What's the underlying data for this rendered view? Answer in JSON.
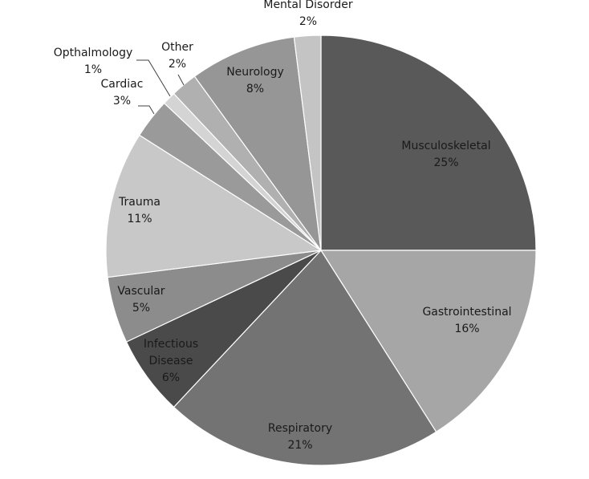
{
  "chart_data": {
    "type": "pie",
    "title": "",
    "start_angle_deg": 0,
    "direction": "clockwise",
    "slices": [
      {
        "label": "Musculoskeletal",
        "value": 25,
        "pct_label": "25%",
        "color": "#595959"
      },
      {
        "label": "Gastrointestinal",
        "value": 16,
        "pct_label": "16%",
        "color": "#a6a6a6"
      },
      {
        "label": "Respiratory",
        "value": 21,
        "pct_label": "21%",
        "color": "#737373"
      },
      {
        "label": "Infectious Disease",
        "value": 6,
        "pct_label": "6%",
        "color": "#4a4a4a"
      },
      {
        "label": "Vascular",
        "value": 5,
        "pct_label": "5%",
        "color": "#8c8c8c"
      },
      {
        "label": "Trauma",
        "value": 11,
        "pct_label": "11%",
        "color": "#c8c8c8"
      },
      {
        "label": "Cardiac",
        "value": 3,
        "pct_label": "3%",
        "color": "#9a9a9a"
      },
      {
        "label": "Opthalmology",
        "value": 1,
        "pct_label": "1%",
        "color": "#d4d4d4"
      },
      {
        "label": "Other",
        "value": 2,
        "pct_label": "2%",
        "color": "#b0b0b0"
      },
      {
        "label": "Neurology",
        "value": 8,
        "pct_label": "8%",
        "color": "#969696"
      },
      {
        "label": "Mental Disorder",
        "value": 2,
        "pct_label": "2%",
        "color": "#c4c4c4"
      }
    ],
    "legend": "none"
  }
}
